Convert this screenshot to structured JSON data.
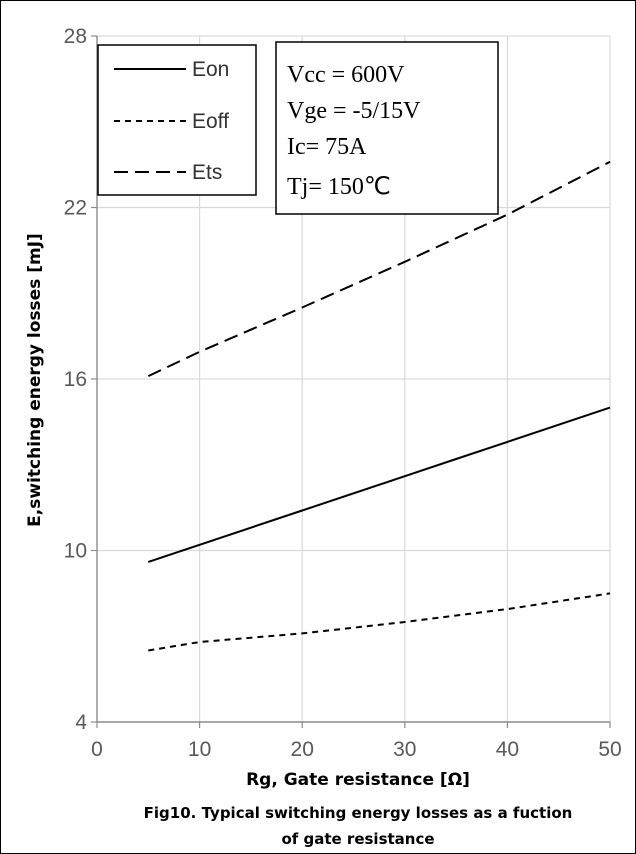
{
  "chart_data": {
    "type": "line",
    "xlabel": "Rg, Gate resistance [Ω]",
    "ylabel": "E,switching energy losses [mJ]",
    "caption_lines": [
      "Fig10. Typical switching energy losses as a fuction",
      "of gate resistance"
    ],
    "xlim": [
      0,
      50
    ],
    "ylim": [
      4,
      28
    ],
    "x_ticks": [
      "0",
      "10",
      "20",
      "30",
      "40",
      "50"
    ],
    "y_ticks": [
      "4",
      "10",
      "16",
      "22",
      "28"
    ],
    "grid": true,
    "legend_placement": "top-left",
    "series": [
      {
        "name": "Eon",
        "style": "solid",
        "x": [
          5,
          10,
          20,
          30,
          35,
          40,
          50
        ],
        "y": [
          9.6,
          10.2,
          11.4,
          12.6,
          13.2,
          13.8,
          15.0
        ]
      },
      {
        "name": "Eoff",
        "style": "short-dash",
        "x": [
          5,
          10,
          20,
          30,
          40,
          50
        ],
        "y": [
          6.5,
          6.8,
          7.1,
          7.5,
          7.95,
          8.5
        ]
      },
      {
        "name": "Ets",
        "style": "long-dash",
        "x": [
          5,
          10,
          20,
          30,
          40,
          50
        ],
        "y": [
          16.1,
          16.95,
          18.5,
          20.1,
          21.75,
          23.6
        ]
      }
    ],
    "conditions": [
      "Vcc = 600V",
      "Vge = -5/15V",
      "Ic= 75A",
      "Tj= 150℃"
    ]
  }
}
